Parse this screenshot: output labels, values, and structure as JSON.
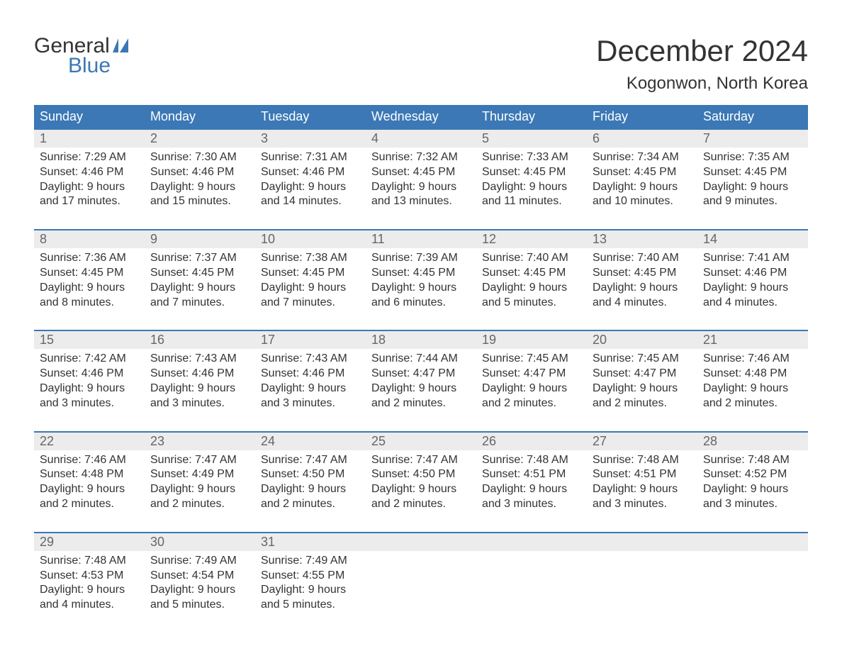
{
  "logo": {
    "text_general": "General",
    "text_blue": "Blue",
    "flag_color": "#3b78b5"
  },
  "title": "December 2024",
  "location": "Kogonwon, North Korea",
  "colors": {
    "header_bg": "#3b78b5",
    "header_text": "#ffffff",
    "daynum_bg": "#ececec",
    "daynum_text": "#666666",
    "body_text": "#333333",
    "week_border": "#3b78b5",
    "background": "#ffffff"
  },
  "typography": {
    "title_fontsize": 42,
    "location_fontsize": 24,
    "dow_fontsize": 18,
    "daynum_fontsize": 18,
    "cell_fontsize": 16
  },
  "day_names": [
    "Sunday",
    "Monday",
    "Tuesday",
    "Wednesday",
    "Thursday",
    "Friday",
    "Saturday"
  ],
  "weeks": [
    [
      {
        "num": "1",
        "sunrise": "Sunrise: 7:29 AM",
        "sunset": "Sunset: 4:46 PM",
        "d1": "Daylight: 9 hours",
        "d2": "and 17 minutes."
      },
      {
        "num": "2",
        "sunrise": "Sunrise: 7:30 AM",
        "sunset": "Sunset: 4:46 PM",
        "d1": "Daylight: 9 hours",
        "d2": "and 15 minutes."
      },
      {
        "num": "3",
        "sunrise": "Sunrise: 7:31 AM",
        "sunset": "Sunset: 4:46 PM",
        "d1": "Daylight: 9 hours",
        "d2": "and 14 minutes."
      },
      {
        "num": "4",
        "sunrise": "Sunrise: 7:32 AM",
        "sunset": "Sunset: 4:45 PM",
        "d1": "Daylight: 9 hours",
        "d2": "and 13 minutes."
      },
      {
        "num": "5",
        "sunrise": "Sunrise: 7:33 AM",
        "sunset": "Sunset: 4:45 PM",
        "d1": "Daylight: 9 hours",
        "d2": "and 11 minutes."
      },
      {
        "num": "6",
        "sunrise": "Sunrise: 7:34 AM",
        "sunset": "Sunset: 4:45 PM",
        "d1": "Daylight: 9 hours",
        "d2": "and 10 minutes."
      },
      {
        "num": "7",
        "sunrise": "Sunrise: 7:35 AM",
        "sunset": "Sunset: 4:45 PM",
        "d1": "Daylight: 9 hours",
        "d2": "and 9 minutes."
      }
    ],
    [
      {
        "num": "8",
        "sunrise": "Sunrise: 7:36 AM",
        "sunset": "Sunset: 4:45 PM",
        "d1": "Daylight: 9 hours",
        "d2": "and 8 minutes."
      },
      {
        "num": "9",
        "sunrise": "Sunrise: 7:37 AM",
        "sunset": "Sunset: 4:45 PM",
        "d1": "Daylight: 9 hours",
        "d2": "and 7 minutes."
      },
      {
        "num": "10",
        "sunrise": "Sunrise: 7:38 AM",
        "sunset": "Sunset: 4:45 PM",
        "d1": "Daylight: 9 hours",
        "d2": "and 7 minutes."
      },
      {
        "num": "11",
        "sunrise": "Sunrise: 7:39 AM",
        "sunset": "Sunset: 4:45 PM",
        "d1": "Daylight: 9 hours",
        "d2": "and 6 minutes."
      },
      {
        "num": "12",
        "sunrise": "Sunrise: 7:40 AM",
        "sunset": "Sunset: 4:45 PM",
        "d1": "Daylight: 9 hours",
        "d2": "and 5 minutes."
      },
      {
        "num": "13",
        "sunrise": "Sunrise: 7:40 AM",
        "sunset": "Sunset: 4:45 PM",
        "d1": "Daylight: 9 hours",
        "d2": "and 4 minutes."
      },
      {
        "num": "14",
        "sunrise": "Sunrise: 7:41 AM",
        "sunset": "Sunset: 4:46 PM",
        "d1": "Daylight: 9 hours",
        "d2": "and 4 minutes."
      }
    ],
    [
      {
        "num": "15",
        "sunrise": "Sunrise: 7:42 AM",
        "sunset": "Sunset: 4:46 PM",
        "d1": "Daylight: 9 hours",
        "d2": "and 3 minutes."
      },
      {
        "num": "16",
        "sunrise": "Sunrise: 7:43 AM",
        "sunset": "Sunset: 4:46 PM",
        "d1": "Daylight: 9 hours",
        "d2": "and 3 minutes."
      },
      {
        "num": "17",
        "sunrise": "Sunrise: 7:43 AM",
        "sunset": "Sunset: 4:46 PM",
        "d1": "Daylight: 9 hours",
        "d2": "and 3 minutes."
      },
      {
        "num": "18",
        "sunrise": "Sunrise: 7:44 AM",
        "sunset": "Sunset: 4:47 PM",
        "d1": "Daylight: 9 hours",
        "d2": "and 2 minutes."
      },
      {
        "num": "19",
        "sunrise": "Sunrise: 7:45 AM",
        "sunset": "Sunset: 4:47 PM",
        "d1": "Daylight: 9 hours",
        "d2": "and 2 minutes."
      },
      {
        "num": "20",
        "sunrise": "Sunrise: 7:45 AM",
        "sunset": "Sunset: 4:47 PM",
        "d1": "Daylight: 9 hours",
        "d2": "and 2 minutes."
      },
      {
        "num": "21",
        "sunrise": "Sunrise: 7:46 AM",
        "sunset": "Sunset: 4:48 PM",
        "d1": "Daylight: 9 hours",
        "d2": "and 2 minutes."
      }
    ],
    [
      {
        "num": "22",
        "sunrise": "Sunrise: 7:46 AM",
        "sunset": "Sunset: 4:48 PM",
        "d1": "Daylight: 9 hours",
        "d2": "and 2 minutes."
      },
      {
        "num": "23",
        "sunrise": "Sunrise: 7:47 AM",
        "sunset": "Sunset: 4:49 PM",
        "d1": "Daylight: 9 hours",
        "d2": "and 2 minutes."
      },
      {
        "num": "24",
        "sunrise": "Sunrise: 7:47 AM",
        "sunset": "Sunset: 4:50 PM",
        "d1": "Daylight: 9 hours",
        "d2": "and 2 minutes."
      },
      {
        "num": "25",
        "sunrise": "Sunrise: 7:47 AM",
        "sunset": "Sunset: 4:50 PM",
        "d1": "Daylight: 9 hours",
        "d2": "and 2 minutes."
      },
      {
        "num": "26",
        "sunrise": "Sunrise: 7:48 AM",
        "sunset": "Sunset: 4:51 PM",
        "d1": "Daylight: 9 hours",
        "d2": "and 3 minutes."
      },
      {
        "num": "27",
        "sunrise": "Sunrise: 7:48 AM",
        "sunset": "Sunset: 4:51 PM",
        "d1": "Daylight: 9 hours",
        "d2": "and 3 minutes."
      },
      {
        "num": "28",
        "sunrise": "Sunrise: 7:48 AM",
        "sunset": "Sunset: 4:52 PM",
        "d1": "Daylight: 9 hours",
        "d2": "and 3 minutes."
      }
    ],
    [
      {
        "num": "29",
        "sunrise": "Sunrise: 7:48 AM",
        "sunset": "Sunset: 4:53 PM",
        "d1": "Daylight: 9 hours",
        "d2": "and 4 minutes."
      },
      {
        "num": "30",
        "sunrise": "Sunrise: 7:49 AM",
        "sunset": "Sunset: 4:54 PM",
        "d1": "Daylight: 9 hours",
        "d2": "and 5 minutes."
      },
      {
        "num": "31",
        "sunrise": "Sunrise: 7:49 AM",
        "sunset": "Sunset: 4:55 PM",
        "d1": "Daylight: 9 hours",
        "d2": "and 5 minutes."
      },
      null,
      null,
      null,
      null
    ]
  ]
}
